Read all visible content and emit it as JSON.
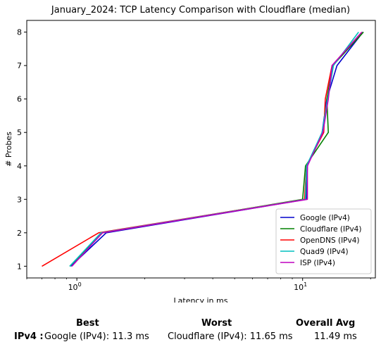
{
  "chart_data": {
    "type": "line",
    "title": "January_2024: TCP Latency Comparison with Cloudflare (median)",
    "xlabel": "Latency in ms",
    "ylabel": "# Probes",
    "xscale": "log",
    "xlim": [
      0.6,
      21
    ],
    "ylim": [
      0.65,
      8.35
    ],
    "x_ticks": [
      1,
      10
    ],
    "x_tick_labels": [
      "10^0",
      "10^1"
    ],
    "y_ticks": [
      1,
      2,
      3,
      4,
      5,
      6,
      7,
      8
    ],
    "grid": false,
    "legend_position": "lower-right",
    "series": [
      {
        "name": "Google (IPv4)",
        "color": "#0000cc",
        "points": [
          [
            0.94,
            1
          ],
          [
            1.35,
            2
          ],
          [
            10.4,
            3
          ],
          [
            10.5,
            4
          ],
          [
            12.2,
            5
          ],
          [
            12.8,
            6
          ],
          [
            14.2,
            7
          ],
          [
            18.5,
            8
          ]
        ]
      },
      {
        "name": "Cloudflare (IPv4)",
        "color": "#008000",
        "points": [
          [
            0.93,
            1
          ],
          [
            1.3,
            2
          ],
          [
            10.0,
            3
          ],
          [
            10.3,
            4
          ],
          [
            13.0,
            5
          ],
          [
            12.8,
            6
          ],
          [
            13.6,
            7
          ],
          [
            18.6,
            8
          ]
        ]
      },
      {
        "name": "OpenDNS (IPv4)",
        "color": "#ff0000",
        "points": [
          [
            0.7,
            1
          ],
          [
            1.25,
            2
          ],
          [
            10.2,
            3
          ],
          [
            10.4,
            4
          ],
          [
            12.4,
            5
          ],
          [
            12.6,
            6
          ],
          [
            13.5,
            7
          ],
          [
            18.3,
            8
          ]
        ]
      },
      {
        "name": "Quad9 (IPv4)",
        "color": "#00bfbf",
        "points": [
          [
            0.93,
            1
          ],
          [
            1.28,
            2
          ],
          [
            10.3,
            3
          ],
          [
            10.4,
            4
          ],
          [
            12.2,
            5
          ],
          [
            12.9,
            6
          ],
          [
            13.7,
            7
          ],
          [
            17.7,
            8
          ]
        ]
      },
      {
        "name": "ISP (IPv4)",
        "color": "#bf00bf",
        "points": [
          [
            0.95,
            1
          ],
          [
            1.3,
            2
          ],
          [
            10.5,
            3
          ],
          [
            10.5,
            4
          ],
          [
            12.3,
            5
          ],
          [
            13.0,
            6
          ],
          [
            13.5,
            7
          ],
          [
            18.3,
            8
          ]
        ]
      }
    ]
  },
  "summary": {
    "best_header": "Best",
    "worst_header": "Worst",
    "avg_header": "Overall Avg",
    "row_label": "IPv4 :",
    "best_value": "Google (IPv4): 11.3 ms",
    "worst_value": "Cloudflare (IPv4): 11.65 ms",
    "avg_value": "11.49 ms"
  }
}
